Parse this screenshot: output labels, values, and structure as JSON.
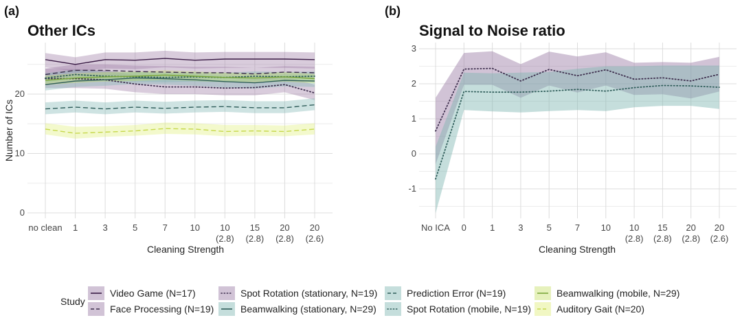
{
  "figure": {
    "legend_title": "Study"
  },
  "studies": [
    {
      "key": "video_game",
      "label": "Video Game (N=17)",
      "line_color": "#3a1b45",
      "band_color": "#9a7aa3",
      "dash": "solid"
    },
    {
      "key": "face_processing",
      "label": "Face Processing (N=19)",
      "line_color": "#3d2e4d",
      "band_color": "#9a7aa3",
      "dash": "longdash"
    },
    {
      "key": "spot_rotation_stationary",
      "label": "Spot Rotation (stationary, N=19)",
      "line_color": "#3d2e4d",
      "band_color": "#9a7aa3",
      "dash": "dotted"
    },
    {
      "key": "beamwalking_stationary",
      "label": "Beamwalking (stationary, N=29)",
      "line_color": "#2f5d5a",
      "band_color": "#7fb5b2",
      "dash": "solid"
    },
    {
      "key": "prediction_error",
      "label": "Prediction Error (N=19)",
      "line_color": "#2f5d5a",
      "band_color": "#7fb5b2",
      "dash": "longdash"
    },
    {
      "key": "spot_rotation_mobile",
      "label": "Spot Rotation (mobile, N=19)",
      "line_color": "#2f5d5a",
      "band_color": "#7fb5b2",
      "dash": "dotted"
    },
    {
      "key": "beamwalking_mobile",
      "label": "Beamwalking (mobile, N=29)",
      "line_color": "#7aa63a",
      "band_color": "#c8e06a",
      "dash": "solid"
    },
    {
      "key": "auditory_gait",
      "label": "Auditory Gait (N=20)",
      "line_color": "#c6d84a",
      "band_color": "#dfee7a",
      "dash": "longdash"
    }
  ],
  "chart_data": [
    {
      "panel_tag": "(a)",
      "type": "line",
      "title": "Other ICs",
      "xlabel": "Cleaning Strength",
      "ylabel": "Number of ICs",
      "categories": [
        "no clean",
        "1",
        "3",
        "5",
        "7",
        "10",
        "10\n(2.8)",
        "15\n(2.8)",
        "20\n(2.8)",
        "20\n(2.6)"
      ],
      "ylim": [
        -1,
        28
      ],
      "yticks": [
        0,
        10,
        20
      ],
      "grid": true,
      "series": [
        {
          "name": "Video Game (N=17)",
          "values": [
            25.8,
            25.0,
            25.8,
            25.7,
            26.0,
            25.7,
            25.9,
            25.9,
            25.9,
            25.8
          ],
          "lower": [
            24.5,
            23.8,
            24.3,
            24.2,
            24.5,
            24.3,
            24.4,
            24.4,
            24.4,
            24.3
          ],
          "upper": [
            26.9,
            26.2,
            27.0,
            27.0,
            27.3,
            27.0,
            27.1,
            27.1,
            27.1,
            27.0
          ]
        },
        {
          "name": "Face Processing (N=19)",
          "values": [
            23.3,
            24.0,
            24.0,
            23.8,
            23.7,
            23.6,
            23.6,
            23.4,
            23.7,
            23.6
          ],
          "lower": [
            22.3,
            23.0,
            23.0,
            22.8,
            22.7,
            22.6,
            22.6,
            22.4,
            22.7,
            22.6
          ],
          "upper": [
            24.3,
            25.0,
            25.0,
            24.8,
            24.7,
            24.6,
            24.6,
            24.4,
            24.7,
            24.6
          ]
        },
        {
          "name": "Spot Rotation (stationary, N=19)",
          "values": [
            22.6,
            22.6,
            22.4,
            21.7,
            21.2,
            21.2,
            21.0,
            21.1,
            21.6,
            20.2
          ],
          "lower": [
            21.0,
            21.0,
            20.9,
            20.3,
            20.0,
            20.0,
            19.8,
            19.8,
            20.3,
            19.0
          ],
          "upper": [
            24.3,
            24.2,
            24.0,
            23.2,
            22.6,
            22.6,
            22.4,
            22.5,
            23.0,
            21.6
          ]
        },
        {
          "name": "Beamwalking (stationary, N=29)",
          "values": [
            21.6,
            22.2,
            22.4,
            22.7,
            22.6,
            22.4,
            22.1,
            21.9,
            22.3,
            22.2
          ],
          "lower": [
            20.6,
            21.2,
            21.4,
            21.7,
            21.6,
            21.4,
            21.1,
            20.9,
            21.3,
            21.2
          ],
          "upper": [
            22.6,
            23.2,
            23.4,
            23.7,
            23.6,
            23.4,
            23.1,
            22.9,
            23.3,
            23.2
          ]
        },
        {
          "name": "Prediction Error (N=19)",
          "values": [
            17.5,
            17.8,
            17.5,
            17.8,
            17.6,
            17.8,
            17.9,
            17.7,
            17.7,
            18.2
          ],
          "lower": [
            16.6,
            16.9,
            16.6,
            16.9,
            16.7,
            16.9,
            17.0,
            16.8,
            16.8,
            17.3
          ],
          "upper": [
            18.6,
            18.9,
            18.6,
            18.9,
            18.7,
            18.9,
            19.0,
            18.8,
            18.8,
            19.3
          ]
        },
        {
          "name": "Spot Rotation (mobile, N=19)",
          "values": [
            22.7,
            23.3,
            23.0,
            22.9,
            22.8,
            22.9,
            22.8,
            23.0,
            22.9,
            23.0
          ],
          "lower": [
            21.9,
            22.5,
            22.2,
            22.1,
            22.0,
            22.1,
            22.0,
            22.2,
            22.1,
            22.2
          ],
          "upper": [
            23.5,
            24.1,
            23.8,
            23.7,
            23.6,
            23.7,
            23.6,
            23.8,
            23.7,
            23.8
          ]
        },
        {
          "name": "Beamwalking (mobile, N=29)",
          "values": [
            22.3,
            22.7,
            22.9,
            23.0,
            23.2,
            23.0,
            22.8,
            22.7,
            22.9,
            22.6
          ],
          "lower": [
            21.5,
            21.9,
            22.1,
            22.2,
            22.4,
            22.2,
            22.0,
            21.9,
            22.1,
            21.8
          ],
          "upper": [
            23.1,
            23.5,
            23.7,
            23.8,
            24.0,
            23.8,
            23.6,
            23.5,
            23.7,
            23.4
          ]
        },
        {
          "name": "Auditory Gait (N=20)",
          "values": [
            14.1,
            13.4,
            13.6,
            13.8,
            14.2,
            14.1,
            13.7,
            13.8,
            13.7,
            14.1
          ],
          "lower": [
            13.2,
            12.5,
            12.8,
            13.0,
            13.3,
            13.2,
            12.9,
            13.0,
            12.9,
            13.2
          ],
          "upper": [
            15.1,
            14.5,
            14.6,
            14.8,
            15.2,
            15.1,
            14.8,
            14.8,
            14.7,
            15.1
          ]
        }
      ]
    },
    {
      "panel_tag": "(b)",
      "type": "line",
      "title": "Signal to Noise ratio",
      "xlabel": "Cleaning Strength",
      "ylabel": "",
      "categories": [
        "No ICA",
        "0",
        "1",
        "3",
        "5",
        "7",
        "10",
        "10\n(2.8)",
        "15\n(2.8)",
        "20\n(2.8)",
        "20\n(2.6)"
      ],
      "ylim": [
        -1.9,
        3.15
      ],
      "yticks": [
        -1,
        0,
        1,
        2,
        3
      ],
      "grid": true,
      "series": [
        {
          "name": "Spot Rotation (stationary, N=19)",
          "values": [
            0.65,
            2.42,
            2.44,
            2.08,
            2.41,
            2.23,
            2.4,
            2.13,
            2.17,
            2.08,
            2.27
          ],
          "lower": [
            -0.3,
            1.97,
            1.97,
            1.6,
            1.95,
            1.75,
            1.95,
            1.68,
            1.7,
            1.58,
            1.78
          ],
          "upper": [
            1.6,
            2.88,
            2.93,
            2.56,
            2.92,
            2.78,
            2.9,
            2.6,
            2.62,
            2.6,
            2.77
          ]
        },
        {
          "name": "Spot Rotation (mobile, N=19)",
          "values": [
            -0.72,
            1.78,
            1.76,
            1.76,
            1.79,
            1.84,
            1.79,
            1.89,
            1.95,
            1.94,
            1.9
          ],
          "lower": [
            -1.7,
            1.25,
            1.21,
            1.18,
            1.22,
            1.25,
            1.22,
            1.33,
            1.37,
            1.37,
            1.28
          ],
          "upper": [
            0.2,
            2.32,
            2.3,
            2.32,
            2.34,
            2.43,
            2.5,
            2.5,
            2.52,
            2.52,
            2.52
          ]
        }
      ]
    }
  ]
}
